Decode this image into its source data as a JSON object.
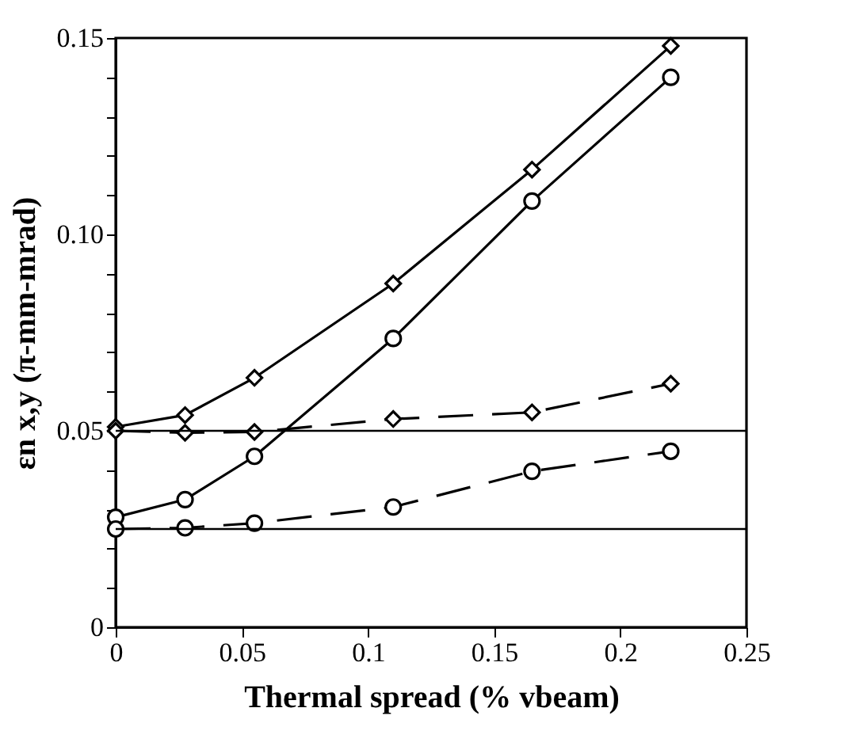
{
  "chart_data": {
    "type": "line",
    "xlabel": "Thermal spread (% vbeam)",
    "ylabel": "εn x,y (π-mm-mrad)",
    "xlim": [
      0,
      0.25
    ],
    "xticks": [
      0,
      0.05,
      0.1,
      0.15,
      0.2,
      0.25
    ],
    "ylim": [
      0,
      0.15
    ],
    "yticks": [
      0,
      {
        "value": 0.01,
        "label": null
      },
      {
        "value": 0.02,
        "label": null
      },
      {
        "value": 0.03,
        "label": null
      },
      {
        "value": 0.04,
        "label": null
      },
      0.05,
      {
        "value": 0.06,
        "label": null
      },
      {
        "value": 0.07,
        "label": null
      },
      {
        "value": 0.08,
        "label": null
      },
      {
        "value": 0.09,
        "label": null
      },
      {
        "value": 0.1,
        "label": "0.10"
      },
      {
        "value": 0.11,
        "label": null
      },
      {
        "value": 0.12,
        "label": null
      },
      {
        "value": 0.13,
        "label": null
      },
      {
        "value": 0.14,
        "label": null
      },
      0.15
    ],
    "grid": false,
    "series": [
      {
        "color": "#000000",
        "marker": "diamond",
        "line_style": "solid",
        "x": [
          0,
          0.0275,
          0.055,
          0.11,
          0.165,
          0.22
        ],
        "values": [
          0.051,
          0.054,
          0.0635,
          0.0875,
          0.1165,
          0.148
        ]
      },
      {
        "color": "#000000",
        "marker": "circle",
        "line_style": "solid",
        "x": [
          0,
          0.0275,
          0.055,
          0.11,
          0.165,
          0.22
        ],
        "values": [
          0.028,
          0.0325,
          0.0435,
          0.0735,
          0.1085,
          0.14
        ]
      },
      {
        "color": "#000000",
        "marker": "diamond",
        "line_style": "dashed",
        "x": [
          0,
          0.0275,
          0.055,
          0.11,
          0.165,
          0.22
        ],
        "values": [
          0.05,
          0.0495,
          0.0497,
          0.053,
          0.0547,
          0.062
        ]
      },
      {
        "color": "#000000",
        "marker": "circle",
        "line_style": "dashed",
        "x": [
          0,
          0.0275,
          0.055,
          0.11,
          0.165,
          0.22
        ],
        "values": [
          0.025,
          0.0253,
          0.0265,
          0.0306,
          0.0397,
          0.0448
        ]
      }
    ],
    "ref_lines": [
      {
        "axis": "y",
        "value": 0.05,
        "color": "#000000"
      },
      {
        "axis": "y",
        "value": 0.025,
        "color": "#000000"
      }
    ]
  }
}
